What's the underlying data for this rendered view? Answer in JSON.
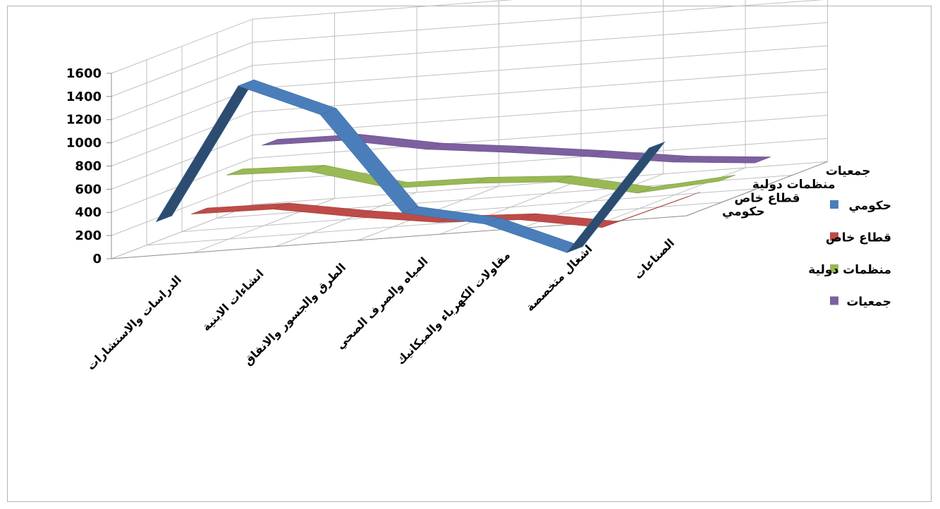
{
  "chart_data": {
    "type": "line",
    "style": "3d",
    "title": "",
    "xlabel": "",
    "ylabel": "",
    "ylim": [
      0,
      1600
    ],
    "y_ticks": [
      "0",
      "200",
      "400",
      "600",
      "800",
      "1000",
      "1200",
      "1400",
      "1600"
    ],
    "grid": true,
    "legend_position": "right",
    "categories": [
      "الدراسات والاستشارات",
      "انشاءات الابنية",
      "الطرق والجسور والانفاق",
      "المياه والصرف الصحي",
      "مقاولات الكهرباء والميكانيك",
      "اشغال متخصصة",
      "الصناعات"
    ],
    "depth_labels": [
      "حكومي",
      "قطاع خاص",
      "منظمات دولية",
      "جمعيات"
    ],
    "series": [
      {
        "name": "حكومي",
        "color": "#4a7ebb",
        "values": [
          280,
          1400,
          1100,
          200,
          50,
          -250,
          600
        ]
      },
      {
        "name": "قطاع خاص",
        "color": "#be4b48",
        "values": [
          230,
          220,
          100,
          0,
          -30,
          -150,
          50
        ]
      },
      {
        "name": "منظمات دولية",
        "color": "#98b954",
        "values": [
          450,
          430,
          230,
          220,
          180,
          30,
          80
        ]
      },
      {
        "name": "جمعيات",
        "color": "#7d60a0",
        "values": [
          590,
          580,
          450,
          370,
          280,
          180,
          120
        ]
      }
    ]
  }
}
